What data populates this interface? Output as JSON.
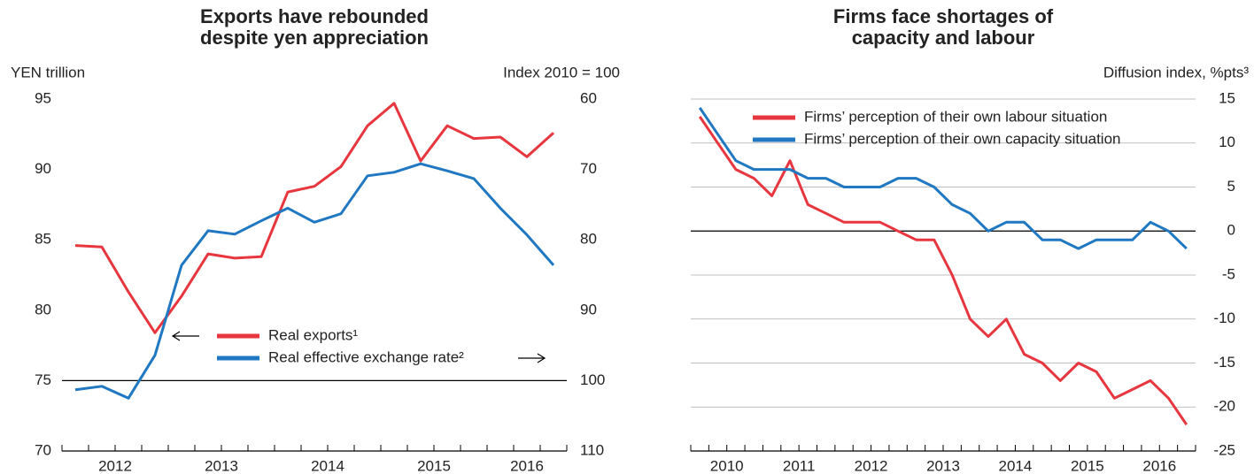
{
  "chart_data": [
    {
      "type": "line",
      "title": [
        "Exports have rebounded",
        "despite yen appreciation"
      ],
      "ylabel": "YEN trillion",
      "y2label": "Index 2010 = 100",
      "categories": [
        "2012",
        null,
        null,
        null,
        "2013",
        null,
        null,
        null,
        "2014",
        null,
        null,
        null,
        "2015",
        null,
        null,
        null,
        "2016",
        null,
        null
      ],
      "series": [
        {
          "name": "Real exports¹",
          "color": "#e8363f",
          "values": [
            84.6,
            84.5,
            81.3,
            78.4,
            81,
            84,
            83.7,
            83.8,
            88.4,
            88.8,
            90.2,
            93.1,
            94.7,
            90.6,
            93.1,
            92.2,
            92.3,
            90.9,
            92.6
          ]
        },
        {
          "name": "Real effective exchange rate²",
          "color": "#1f78c1",
          "axis": "y2",
          "values": [
            101.3,
            100.8,
            102.5,
            96.4,
            83.6,
            78.7,
            79.2,
            77.3,
            75.5,
            77.5,
            76.3,
            70.9,
            70.4,
            69.2,
            70.2,
            71.3,
            75.5,
            79.3,
            83.6
          ]
        }
      ],
      "ylim": [
        70,
        95
      ],
      "yticks": [
        70,
        75,
        80,
        85,
        90,
        95
      ],
      "y2lim": [
        110,
        60
      ],
      "y2ticks": [
        60,
        70,
        80,
        90,
        100,
        110
      ],
      "hline": 75,
      "legend": "lower center"
    },
    {
      "type": "line",
      "title": [
        "Firms face shortages of",
        "capacity and labour"
      ],
      "ylabel": "Diffusion index, %pts³",
      "y_side": "right",
      "categories": [
        "2010",
        null,
        null,
        null,
        "2011",
        null,
        null,
        null,
        "2012",
        null,
        null,
        null,
        "2013",
        null,
        null,
        null,
        "2014",
        null,
        null,
        null,
        "2015",
        null,
        null,
        null,
        "2016",
        null,
        null,
        null
      ],
      "series": [
        {
          "name": "Firms’ perception of their own labour situation",
          "color": "#e8363f",
          "values": [
            13,
            10,
            7,
            6,
            4,
            8,
            3,
            2,
            1,
            1,
            1,
            0,
            -1,
            -1,
            -5,
            -10,
            -12,
            -10,
            -14,
            -15,
            -17,
            -15,
            -16,
            -19,
            -18,
            -17,
            -19,
            -22
          ]
        },
        {
          "name": "Firms’ perception of their own capacity situation",
          "color": "#1f78c1",
          "values": [
            14,
            11,
            8,
            7,
            7,
            7,
            6,
            6,
            5,
            5,
            5,
            6,
            6,
            5,
            3,
            2,
            0,
            1,
            1,
            -1,
            -1,
            -2,
            -1,
            -1,
            -1,
            1,
            0,
            -2
          ]
        }
      ],
      "ylim": [
        -25,
        15
      ],
      "yticks": [
        -25,
        -20,
        -15,
        -10,
        -5,
        0,
        5,
        10,
        15
      ],
      "grid": true,
      "hline": 0,
      "legend": "upper left"
    }
  ]
}
